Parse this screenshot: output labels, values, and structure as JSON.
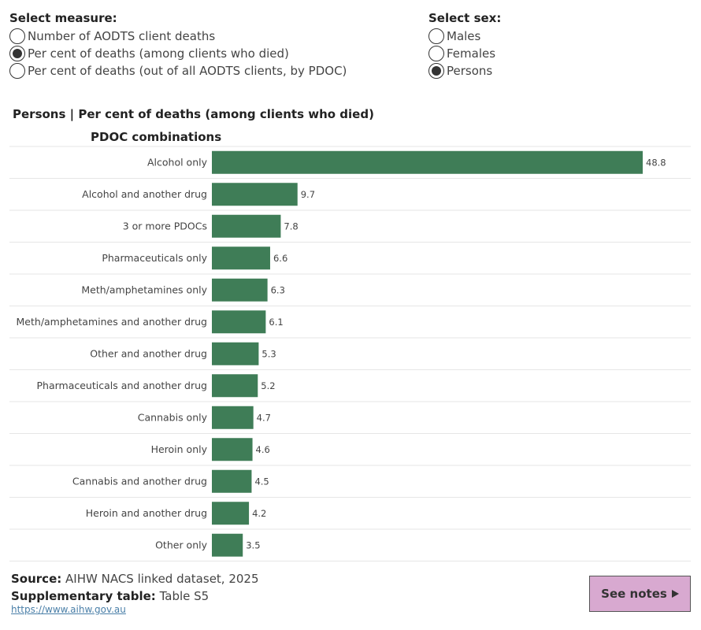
{
  "measure_filter": {
    "title": "Select measure:",
    "options": [
      {
        "label": "Number of AODTS client deaths",
        "checked": false
      },
      {
        "label": "Per cent of deaths (among clients who died)",
        "checked": true
      },
      {
        "label": "Per cent of deaths (out of all AODTS clients, by PDOC)",
        "checked": false
      }
    ]
  },
  "sex_filter": {
    "title": "Select sex:",
    "options": [
      {
        "label": "Males",
        "checked": false
      },
      {
        "label": "Females",
        "checked": false
      },
      {
        "label": "Persons",
        "checked": true
      }
    ]
  },
  "chart_title": "Persons | Per cent of deaths (among clients who died)",
  "chart_data": {
    "type": "bar",
    "orientation": "horizontal",
    "xlabel": "",
    "ylabel": "PDOC combinations",
    "categories": [
      "Alcohol only",
      "Alcohol and another drug",
      "3 or more PDOCs",
      "Pharmaceuticals only",
      "Meth/amphetamines only",
      "Meth/amphetamines and another drug",
      "Other and another drug",
      "Pharmaceuticals and another drug",
      "Cannabis only",
      "Heroin only",
      "Cannabis and another drug",
      "Heroin and another drug",
      "Other only"
    ],
    "values": [
      48.8,
      9.7,
      7.8,
      6.6,
      6.3,
      6.1,
      5.3,
      5.2,
      4.7,
      4.6,
      4.5,
      4.2,
      3.5
    ],
    "xlim": [
      0,
      48.8
    ],
    "bar_color": "#3f7d57",
    "grid": false,
    "legend": "none"
  },
  "footer": {
    "source_label": "Source:",
    "source_value": "AIHW NACS linked dataset, 2025",
    "supp_label": "Supplementary table:",
    "supp_value": "Table S5",
    "link": "https://www.aihw.gov.au",
    "notes_button": "See notes"
  }
}
